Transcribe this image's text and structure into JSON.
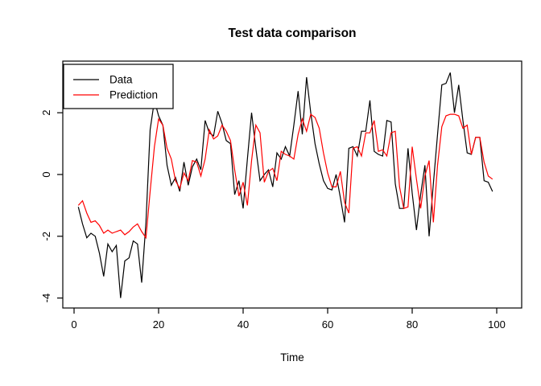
{
  "title": "Test data comparison",
  "chart_data": {
    "type": "line",
    "title": "Test data comparison",
    "xlabel": "Time",
    "ylabel": "",
    "xlim": [
      0,
      100
    ],
    "ylim": [
      -4.3,
      3.6
    ],
    "x_ticks": [
      0,
      20,
      40,
      60,
      80,
      100
    ],
    "y_ticks": [
      -4,
      -2,
      0,
      2
    ],
    "grid": false,
    "legend_position": "topleft",
    "x": [
      1,
      2,
      3,
      4,
      5,
      6,
      7,
      8,
      9,
      10,
      11,
      12,
      13,
      14,
      15,
      16,
      17,
      18,
      19,
      20,
      21,
      22,
      23,
      24,
      25,
      26,
      27,
      28,
      29,
      30,
      31,
      32,
      33,
      34,
      35,
      36,
      37,
      38,
      39,
      40,
      41,
      42,
      43,
      44,
      45,
      46,
      47,
      48,
      49,
      50,
      51,
      52,
      53,
      54,
      55,
      56,
      57,
      58,
      59,
      60,
      61,
      62,
      63,
      64,
      65,
      66,
      67,
      68,
      69,
      70,
      71,
      72,
      73,
      74,
      75,
      76,
      77,
      78,
      79,
      80,
      81,
      82,
      83,
      84,
      85,
      86,
      87,
      88,
      89,
      90,
      91,
      92,
      93,
      94,
      95,
      96,
      97,
      98,
      99
    ],
    "series": [
      {
        "name": "Data",
        "color": "#000000",
        "values": [
          -1.05,
          -1.6,
          -2.05,
          -1.9,
          -2.0,
          -2.55,
          -3.3,
          -2.25,
          -2.5,
          -2.3,
          -4.0,
          -2.8,
          -2.7,
          -2.15,
          -2.25,
          -3.5,
          -1.55,
          1.45,
          2.4,
          1.9,
          1.6,
          0.3,
          -0.35,
          -0.1,
          -0.55,
          0.4,
          -0.35,
          0.25,
          0.5,
          0.15,
          1.75,
          1.35,
          1.25,
          2.05,
          1.65,
          1.1,
          1.0,
          -0.65,
          -0.2,
          -1.1,
          0.5,
          2.0,
          0.85,
          -0.2,
          0.0,
          0.15,
          -0.4,
          0.7,
          0.5,
          0.9,
          0.6,
          1.6,
          2.7,
          1.3,
          3.15,
          2.0,
          1.0,
          0.35,
          -0.2,
          -0.45,
          -0.5,
          0.0,
          -0.75,
          -1.55,
          0.85,
          0.9,
          0.6,
          1.4,
          1.4,
          2.4,
          0.75,
          0.65,
          0.6,
          1.75,
          1.7,
          -0.3,
          -1.1,
          -1.1,
          0.85,
          -0.6,
          -1.8,
          -0.65,
          0.3,
          -2.0,
          -0.3,
          1.3,
          2.9,
          2.95,
          3.3,
          2.0,
          2.9,
          1.75,
          0.7,
          0.65,
          1.2,
          1.2,
          -0.2,
          -0.25,
          -0.55
        ]
      },
      {
        "name": "Prediction",
        "color": "#FF0000",
        "values": [
          -1.0,
          -0.85,
          -1.25,
          -1.55,
          -1.5,
          -1.65,
          -1.9,
          -1.8,
          -1.9,
          -1.85,
          -1.8,
          -1.95,
          -1.85,
          -1.7,
          -1.6,
          -1.85,
          -2.05,
          -0.55,
          0.9,
          1.8,
          1.6,
          0.85,
          0.5,
          -0.2,
          -0.45,
          0.05,
          -0.2,
          0.45,
          0.4,
          -0.05,
          0.5,
          1.45,
          1.15,
          1.25,
          1.6,
          1.4,
          1.1,
          0.15,
          -0.7,
          -0.25,
          -1.0,
          0.45,
          1.6,
          1.35,
          -0.25,
          0.1,
          0.2,
          -0.2,
          0.75,
          0.65,
          0.6,
          0.5,
          1.3,
          1.8,
          1.4,
          1.95,
          1.85,
          1.5,
          0.7,
          0.05,
          -0.4,
          -0.4,
          0.1,
          -0.9,
          -1.25,
          0.85,
          0.9,
          0.6,
          1.35,
          1.35,
          1.75,
          0.75,
          0.8,
          0.6,
          1.35,
          1.4,
          -0.4,
          -1.1,
          -1.05,
          0.9,
          -0.15,
          -1.1,
          -0.05,
          0.45,
          -1.55,
          0.3,
          1.55,
          1.9,
          1.95,
          1.95,
          1.9,
          1.5,
          1.6,
          0.65,
          1.2,
          1.2,
          0.4,
          -0.05,
          -0.15
        ]
      }
    ]
  },
  "legend": {
    "items": [
      {
        "label": "Data",
        "color": "#000000"
      },
      {
        "label": "Prediction",
        "color": "#FF0000"
      }
    ]
  }
}
